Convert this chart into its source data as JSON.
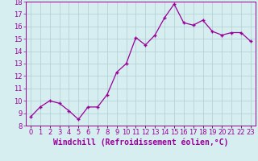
{
  "x": [
    0,
    1,
    2,
    3,
    4,
    5,
    6,
    7,
    8,
    9,
    10,
    11,
    12,
    13,
    14,
    15,
    16,
    17,
    18,
    19,
    20,
    21,
    22,
    23
  ],
  "y": [
    8.7,
    9.5,
    10.0,
    9.8,
    9.2,
    8.5,
    9.5,
    9.5,
    10.5,
    12.3,
    13.0,
    15.1,
    14.5,
    15.3,
    16.7,
    17.8,
    16.3,
    16.1,
    16.5,
    15.6,
    15.3,
    15.5,
    15.5,
    14.8
  ],
  "line_color": "#990099",
  "marker_color": "#990099",
  "bg_color": "#d6eef0",
  "grid_color": "#b0cdd4",
  "xlabel": "Windchill (Refroidissement éolien,°C)",
  "ylim": [
    8,
    18
  ],
  "yticks": [
    8,
    9,
    10,
    11,
    12,
    13,
    14,
    15,
    16,
    17,
    18
  ],
  "xtick_labels": [
    "0",
    "1",
    "2",
    "3",
    "4",
    "5",
    "6",
    "7",
    "8",
    "9",
    "10",
    "11",
    "12",
    "13",
    "14",
    "15",
    "16",
    "17",
    "18",
    "19",
    "20",
    "21",
    "22",
    "23"
  ],
  "tick_color": "#990099",
  "axis_label_fontsize": 7,
  "tick_fontsize": 6
}
